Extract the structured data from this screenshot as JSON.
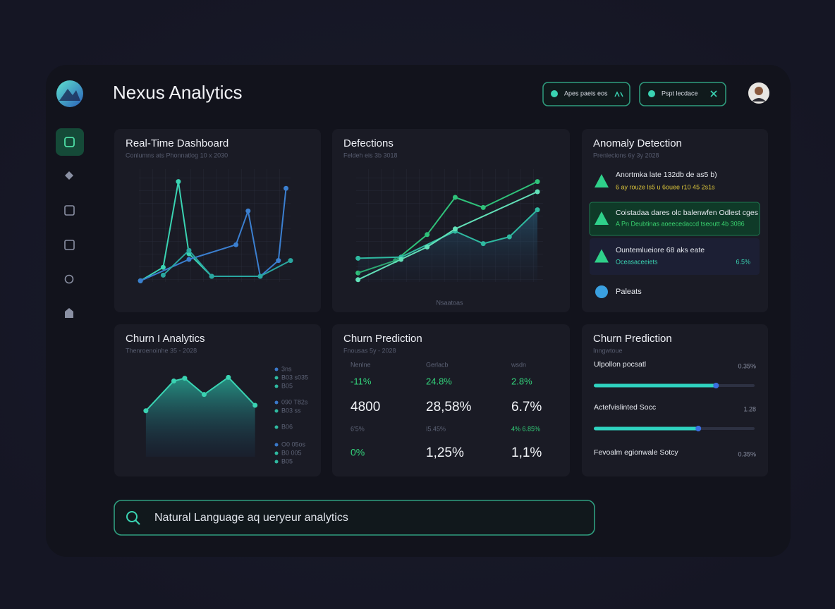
{
  "header": {
    "title": "Nexus Analytics",
    "buttons": [
      "Apes paeis eos",
      "Pspt lecdace"
    ]
  },
  "panels": [
    {
      "title": "Real-Time Dashboard",
      "subtitle": "Conlumns ats Phonnatlog 10 x 2030",
      "chart": {
        "type": "line",
        "xlim": [
          0,
          10
        ],
        "ylim": [
          0,
          100
        ],
        "series": [
          {
            "color": "#3ad3b2",
            "x": [
              0.1,
              1.6,
              2.6,
              3.3,
              4.8
            ],
            "values": [
              1,
              13,
              89,
              25,
              5
            ]
          },
          {
            "color": "#3b7fd0",
            "x": [
              0.1,
              3.3,
              6.4,
              7.2,
              8.0,
              9.2,
              9.7
            ],
            "values": [
              1,
              20,
              33,
              63,
              5,
              19,
              83
            ]
          },
          {
            "color": "#2aa6a0",
            "x": [
              1.6,
              3.3,
              4.8,
              8.0,
              10
            ],
            "values": [
              6,
              28,
              5,
              5,
              19
            ]
          }
        ]
      }
    },
    {
      "title": "Defections",
      "subtitle": "Feldeh eis 3b 3018",
      "chart": {
        "type": "line",
        "x_label": "Nsaatoas",
        "xlim": [
          0,
          10
        ],
        "ylim": [
          0,
          100
        ],
        "series": [
          {
            "color": "#2fc27a",
            "x": [
              0.1,
              2.1,
              3.8,
              5.3,
              6.8,
              9.7
            ],
            "values": [
              8,
              19,
              42,
              75,
              66,
              89
            ]
          },
          {
            "color": "#2fb9a0",
            "area": true,
            "x": [
              0.1,
              2.4,
              5.3,
              6.8,
              8.2,
              9.7
            ],
            "values": [
              21,
              22,
              45,
              34,
              40,
              64
            ]
          },
          {
            "color": "#62e0b8",
            "x": [
              0.1,
              2.4,
              3.8,
              5.3,
              9.7
            ],
            "values": [
              2,
              20,
              31,
              47,
              80
            ]
          }
        ]
      }
    },
    {
      "title": "Anomaly Detection",
      "subtitle": "Prenlecions 6y 3y 2028",
      "alerts": [
        {
          "text": "Anortmka late 132db de as5 b)",
          "detail": "6 ay rouze ls5 u 6ouee r10 45 2s1s"
        },
        {
          "text": "Coistadaa dares olc balenwfen Odlest cges",
          "detail": "A Pn Deubtinas aoeecedaccd tseoutt 4b 3086"
        },
        {
          "text": "Ountemlueiore 68 aks eate",
          "detail": "Oceasaceeiets",
          "value": "6.5%"
        }
      ],
      "footer": "Paleats"
    },
    {
      "title": "Churn I Analytics",
      "subtitle": "Thenroenoinhe 35 - 2028",
      "chart": {
        "type": "area",
        "xlim": [
          0,
          10
        ],
        "ylim": [
          0,
          100
        ],
        "series": [
          {
            "color": "#3ad3b2",
            "x": [
              0.4,
              2.7,
              3.6,
              5.2,
              7.2,
              9.4
            ],
            "values": [
              51,
              84,
              87,
              69,
              88,
              57
            ]
          }
        ]
      },
      "legend": [
        "3ns",
        "B03 s035",
        "B05",
        "090 T82s",
        "B03 ss",
        "B06",
        "O0 05os",
        "B0 005",
        "B05"
      ]
    },
    {
      "title": "Churn Prediction",
      "subtitle": "Fnousas 5y - 2028",
      "table": {
        "header": [
          "Nenlne",
          "Gerlacb",
          "wsdn"
        ],
        "rows": [
          [
            "-11%",
            "24.8%",
            "2.8%"
          ],
          [
            "4800",
            "28,58%",
            "6.7%"
          ],
          [
            "6'5%",
            "I5.45%",
            "4% 6.85%"
          ],
          [
            "0%",
            "1,25%",
            "1,1%"
          ]
        ]
      }
    },
    {
      "title": "Churn Prediction",
      "subtitle": "Inngwtoue",
      "metrics": [
        {
          "label": "Ulpollon pocsatl",
          "value": "0.35%",
          "progress": 76
        },
        {
          "label": "Actefvislinted Socc",
          "value": "1.28",
          "progress": 65
        },
        {
          "label": "Fevoalm egionwale Sotcy",
          "value": "0.35%"
        }
      ]
    }
  ],
  "search": {
    "placeholder": "Natural Language aq ueryeur analytics"
  }
}
